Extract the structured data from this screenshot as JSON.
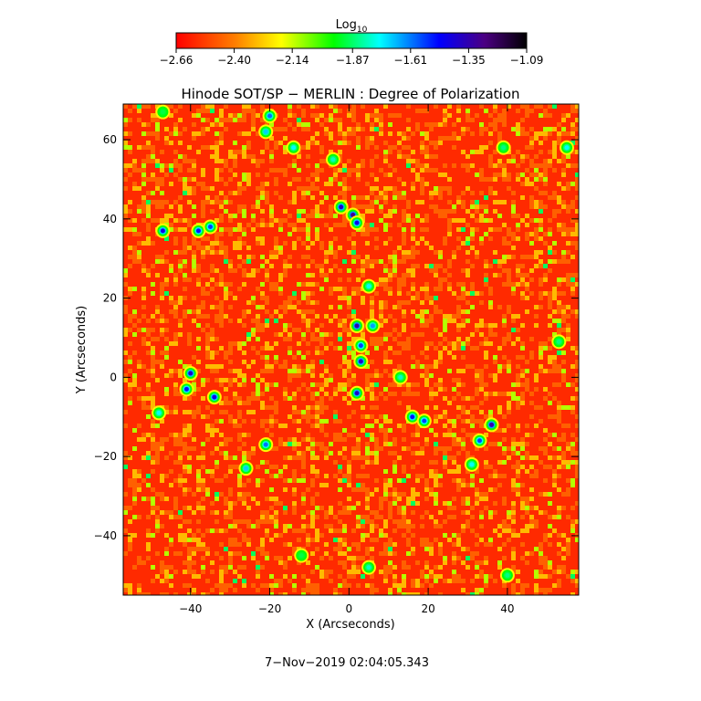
{
  "chart_data": {
    "type": "heatmap",
    "title": "Hinode SOT/SP − MERLIN : Degree of Polarization",
    "xlabel": "X (Arcseconds)",
    "ylabel": "Y (Arcseconds)",
    "xlim": [
      -57,
      58
    ],
    "ylim": [
      -55,
      69
    ],
    "x_ticks": [
      -40,
      -20,
      0,
      20,
      40
    ],
    "y_ticks": [
      -40,
      -20,
      0,
      20,
      40,
      60
    ],
    "x_tick_labels": [
      "−40",
      "−20",
      "0",
      "20",
      "40"
    ],
    "y_tick_labels": [
      "−40",
      "−20",
      "0",
      "20",
      "40",
      "60"
    ],
    "colorbar": {
      "label_base": "Log",
      "label_sub": "10",
      "range": [
        -2.66,
        -1.09
      ],
      "ticks": [
        -2.66,
        -2.4,
        -2.14,
        -1.87,
        -1.61,
        -1.35,
        -1.09
      ],
      "tick_labels": [
        "−2.66",
        "−2.40",
        "−2.14",
        "−1.87",
        "−1.61",
        "−1.35",
        "−1.09"
      ],
      "colormap": "rainbow (red → yellow → green → cyan → blue → black)"
    },
    "background_level": -2.6,
    "features": [
      {
        "x": -47,
        "y": 37,
        "level": -1.45
      },
      {
        "x": -38,
        "y": 37,
        "level": -1.5
      },
      {
        "x": -35,
        "y": 38,
        "level": -1.55
      },
      {
        "x": -20,
        "y": 66,
        "level": -1.6
      },
      {
        "x": -21,
        "y": 62,
        "level": -1.7
      },
      {
        "x": -14,
        "y": 58,
        "level": -1.75
      },
      {
        "x": -4,
        "y": 55,
        "level": -1.8
      },
      {
        "x": -2,
        "y": 43,
        "level": -1.4
      },
      {
        "x": 1,
        "y": 41,
        "level": -1.3
      },
      {
        "x": 2,
        "y": 39,
        "level": -1.45
      },
      {
        "x": 5,
        "y": 23,
        "level": -1.75
      },
      {
        "x": 2,
        "y": 13,
        "level": -1.35
      },
      {
        "x": 6,
        "y": 13,
        "level": -1.65
      },
      {
        "x": 3,
        "y": 8,
        "level": -1.55
      },
      {
        "x": 3,
        "y": 4,
        "level": -1.4
      },
      {
        "x": 2,
        "y": -4,
        "level": -1.4
      },
      {
        "x": 13,
        "y": 0,
        "level": -1.8
      },
      {
        "x": -40,
        "y": 1,
        "level": -1.4
      },
      {
        "x": -41,
        "y": -3,
        "level": -1.5
      },
      {
        "x": -34,
        "y": -5,
        "level": -1.45
      },
      {
        "x": -48,
        "y": -9,
        "level": -1.75
      },
      {
        "x": 16,
        "y": -10,
        "level": -1.5
      },
      {
        "x": 19,
        "y": -11,
        "level": -1.55
      },
      {
        "x": 36,
        "y": -12,
        "level": -1.35
      },
      {
        "x": 33,
        "y": -16,
        "level": -1.55
      },
      {
        "x": 31,
        "y": -22,
        "level": -1.75
      },
      {
        "x": -21,
        "y": -17,
        "level": -1.6
      },
      {
        "x": -26,
        "y": -23,
        "level": -1.7
      },
      {
        "x": 55,
        "y": 58,
        "level": -1.75
      },
      {
        "x": 53,
        "y": 9,
        "level": -1.85
      },
      {
        "x": 39,
        "y": 58,
        "level": -1.85
      },
      {
        "x": 40,
        "y": -50,
        "level": -1.85
      },
      {
        "x": 5,
        "y": -48,
        "level": -1.8
      },
      {
        "x": -12,
        "y": -45,
        "level": -1.9
      },
      {
        "x": -47,
        "y": 67,
        "level": -1.9
      }
    ]
  },
  "timestamp": "7−Nov−2019 02:04:05.343"
}
